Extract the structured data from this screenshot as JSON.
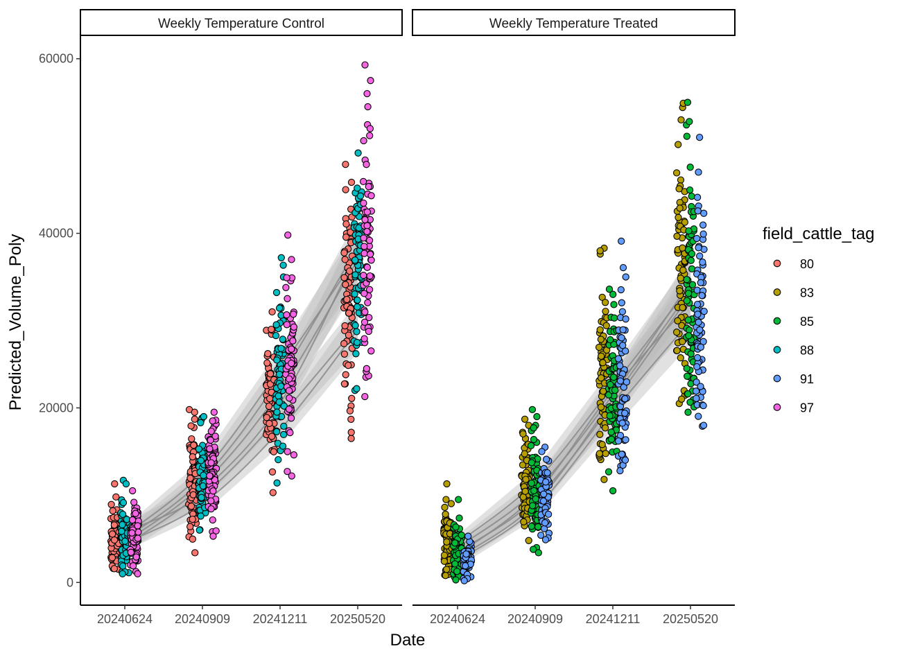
{
  "colors": {
    "80": "#F8766D",
    "83": "#B79F00",
    "85": "#00BA38",
    "88": "#00BFC4",
    "91": "#619CFF",
    "97": "#F564E3",
    "trend": "#8c8c8c",
    "band": "#bdbdbd"
  },
  "chart_data": {
    "type": "scatter",
    "xlabel": "Date",
    "ylabel": "Predicted_Volume_Poly",
    "ylim": [
      -2600,
      62600
    ],
    "yticks": [
      0,
      20000,
      40000,
      60000
    ],
    "categories": [
      "20240624",
      "20240909",
      "20241211",
      "20250520"
    ],
    "legend": {
      "title": "field_cattle_tag",
      "placement": "right",
      "entries": [
        "80",
        "83",
        "85",
        "88",
        "91",
        "97"
      ]
    },
    "panels": [
      {
        "title": "Weekly Temperature Control",
        "groups": [
          "80",
          "88",
          "97"
        ],
        "series": [
          {
            "name": "80",
            "dates": [
              {
                "date": "20240624",
                "min": 1400,
                "max": 11300,
                "mean": 5000,
                "extra": [
                  11300,
                  9800
                ]
              },
              {
                "date": "20240909",
                "min": 3400,
                "max": 19800,
                "mean": 11500,
                "extra": [
                  3400,
                  19800,
                  19500
                ]
              },
              {
                "date": "20241211",
                "min": 10200,
                "max": 31000,
                "mean": 20500,
                "extra": [
                  10300,
                  31000,
                  29000
                ]
              },
              {
                "date": "20250520",
                "min": 16500,
                "max": 47900,
                "mean": 33000,
                "extra": [
                  16500,
                  17200,
                  47900,
                  45000
                ]
              }
            ]
          },
          {
            "name": "88",
            "dates": [
              {
                "date": "20240624",
                "min": 1000,
                "max": 11700,
                "mean": 5000,
                "extra": [
                  11700,
                  11300,
                  1000
                ]
              },
              {
                "date": "20240909",
                "min": 5900,
                "max": 19000,
                "mean": 12000,
                "extra": [
                  19000,
                  18300,
                  6000
                ]
              },
              {
                "date": "20241211",
                "min": 11400,
                "max": 37200,
                "mean": 23000,
                "extra": [
                  37200,
                  35000,
                  11400
                ]
              },
              {
                "date": "20250520",
                "min": 22000,
                "max": 49200,
                "mean": 37000,
                "extra": [
                  49200,
                  22000,
                  22200
                ]
              }
            ]
          },
          {
            "name": "97",
            "dates": [
              {
                "date": "20240624",
                "min": 1000,
                "max": 10500,
                "mean": 5000,
                "extra": [
                  10500,
                  1000
                ]
              },
              {
                "date": "20240909",
                "min": 5300,
                "max": 19500,
                "mean": 12500,
                "extra": [
                  19500,
                  18500,
                  5300
                ]
              },
              {
                "date": "20241211",
                "min": 12200,
                "max": 39800,
                "mean": 25000,
                "extra": [
                  39800,
                  37000,
                  12200
                ]
              },
              {
                "date": "20250520",
                "min": 21300,
                "max": 59300,
                "mean": 38000,
                "extra": [
                  59300,
                  57500,
                  56000,
                  54500,
                  52000,
                  21300,
                  24500
                ]
              }
            ]
          }
        ],
        "trends": [
          [
            4200,
            10500,
            20500,
            38000
          ],
          [
            4600,
            11200,
            22000,
            37000
          ],
          [
            5000,
            11800,
            23500,
            38500
          ],
          [
            5400,
            12600,
            24500,
            37500
          ],
          [
            5800,
            10000,
            19000,
            29500
          ],
          [
            4500,
            9000,
            17500,
            29000
          ]
        ]
      },
      {
        "title": "Weekly Temperature Treated",
        "groups": [
          "83",
          "85",
          "91"
        ],
        "series": [
          {
            "name": "83",
            "dates": [
              {
                "date": "20240624",
                "min": 800,
                "max": 11300,
                "mean": 4500,
                "extra": [
                  11300,
                  9500,
                  800
                ]
              },
              {
                "date": "20240909",
                "min": 4800,
                "max": 18700,
                "mean": 11000,
                "extra": [
                  18700,
                  18000,
                  4800
                ]
              },
              {
                "date": "20241211",
                "min": 11800,
                "max": 38300,
                "mean": 24000,
                "extra": [
                  38300,
                  38000,
                  11800
                ]
              },
              {
                "date": "20250520",
                "min": 20500,
                "max": 54900,
                "mean": 36000,
                "extra": [
                  54900,
                  53000,
                  20500,
                  21000
                ]
              }
            ]
          },
          {
            "name": "85",
            "dates": [
              {
                "date": "20240624",
                "min": 300,
                "max": 9500,
                "mean": 3500,
                "extra": [
                  9500,
                  300
                ]
              },
              {
                "date": "20240909",
                "min": 3400,
                "max": 19800,
                "mean": 11000,
                "extra": [
                  19800,
                  19000,
                  3400
                ]
              },
              {
                "date": "20241211",
                "min": 10500,
                "max": 33600,
                "mean": 21500,
                "extra": [
                  33600,
                  33000,
                  10500
                ]
              },
              {
                "date": "20250520",
                "min": 19500,
                "max": 55000,
                "mean": 34000,
                "extra": [
                  55000,
                  52800,
                  19500
                ]
              }
            ]
          },
          {
            "name": "91",
            "dates": [
              {
                "date": "20240624",
                "min": 200,
                "max": 5300,
                "mean": 2500,
                "extra": [
                  5300,
                  200
                ]
              },
              {
                "date": "20240909",
                "min": 4900,
                "max": 15500,
                "mean": 9500,
                "extra": [
                  15500,
                  15000,
                  4900
                ]
              },
              {
                "date": "20241211",
                "min": 12800,
                "max": 39100,
                "mean": 22000,
                "extra": [
                  39100,
                  35000,
                  12800
                ]
              },
              {
                "date": "20250520",
                "min": 17900,
                "max": 51000,
                "mean": 31000,
                "extra": [
                  51000,
                  47000,
                  17900,
                  18000
                ]
              }
            ]
          }
        ],
        "trends": [
          [
            3500,
            9500,
            20500,
            33000
          ],
          [
            4000,
            10500,
            21500,
            34500
          ],
          [
            4500,
            11500,
            22500,
            34000
          ],
          [
            2800,
            9000,
            21000,
            33500
          ],
          [
            3200,
            10000,
            22000,
            32000
          ],
          [
            2500,
            8500,
            19500,
            30000
          ]
        ]
      }
    ]
  }
}
